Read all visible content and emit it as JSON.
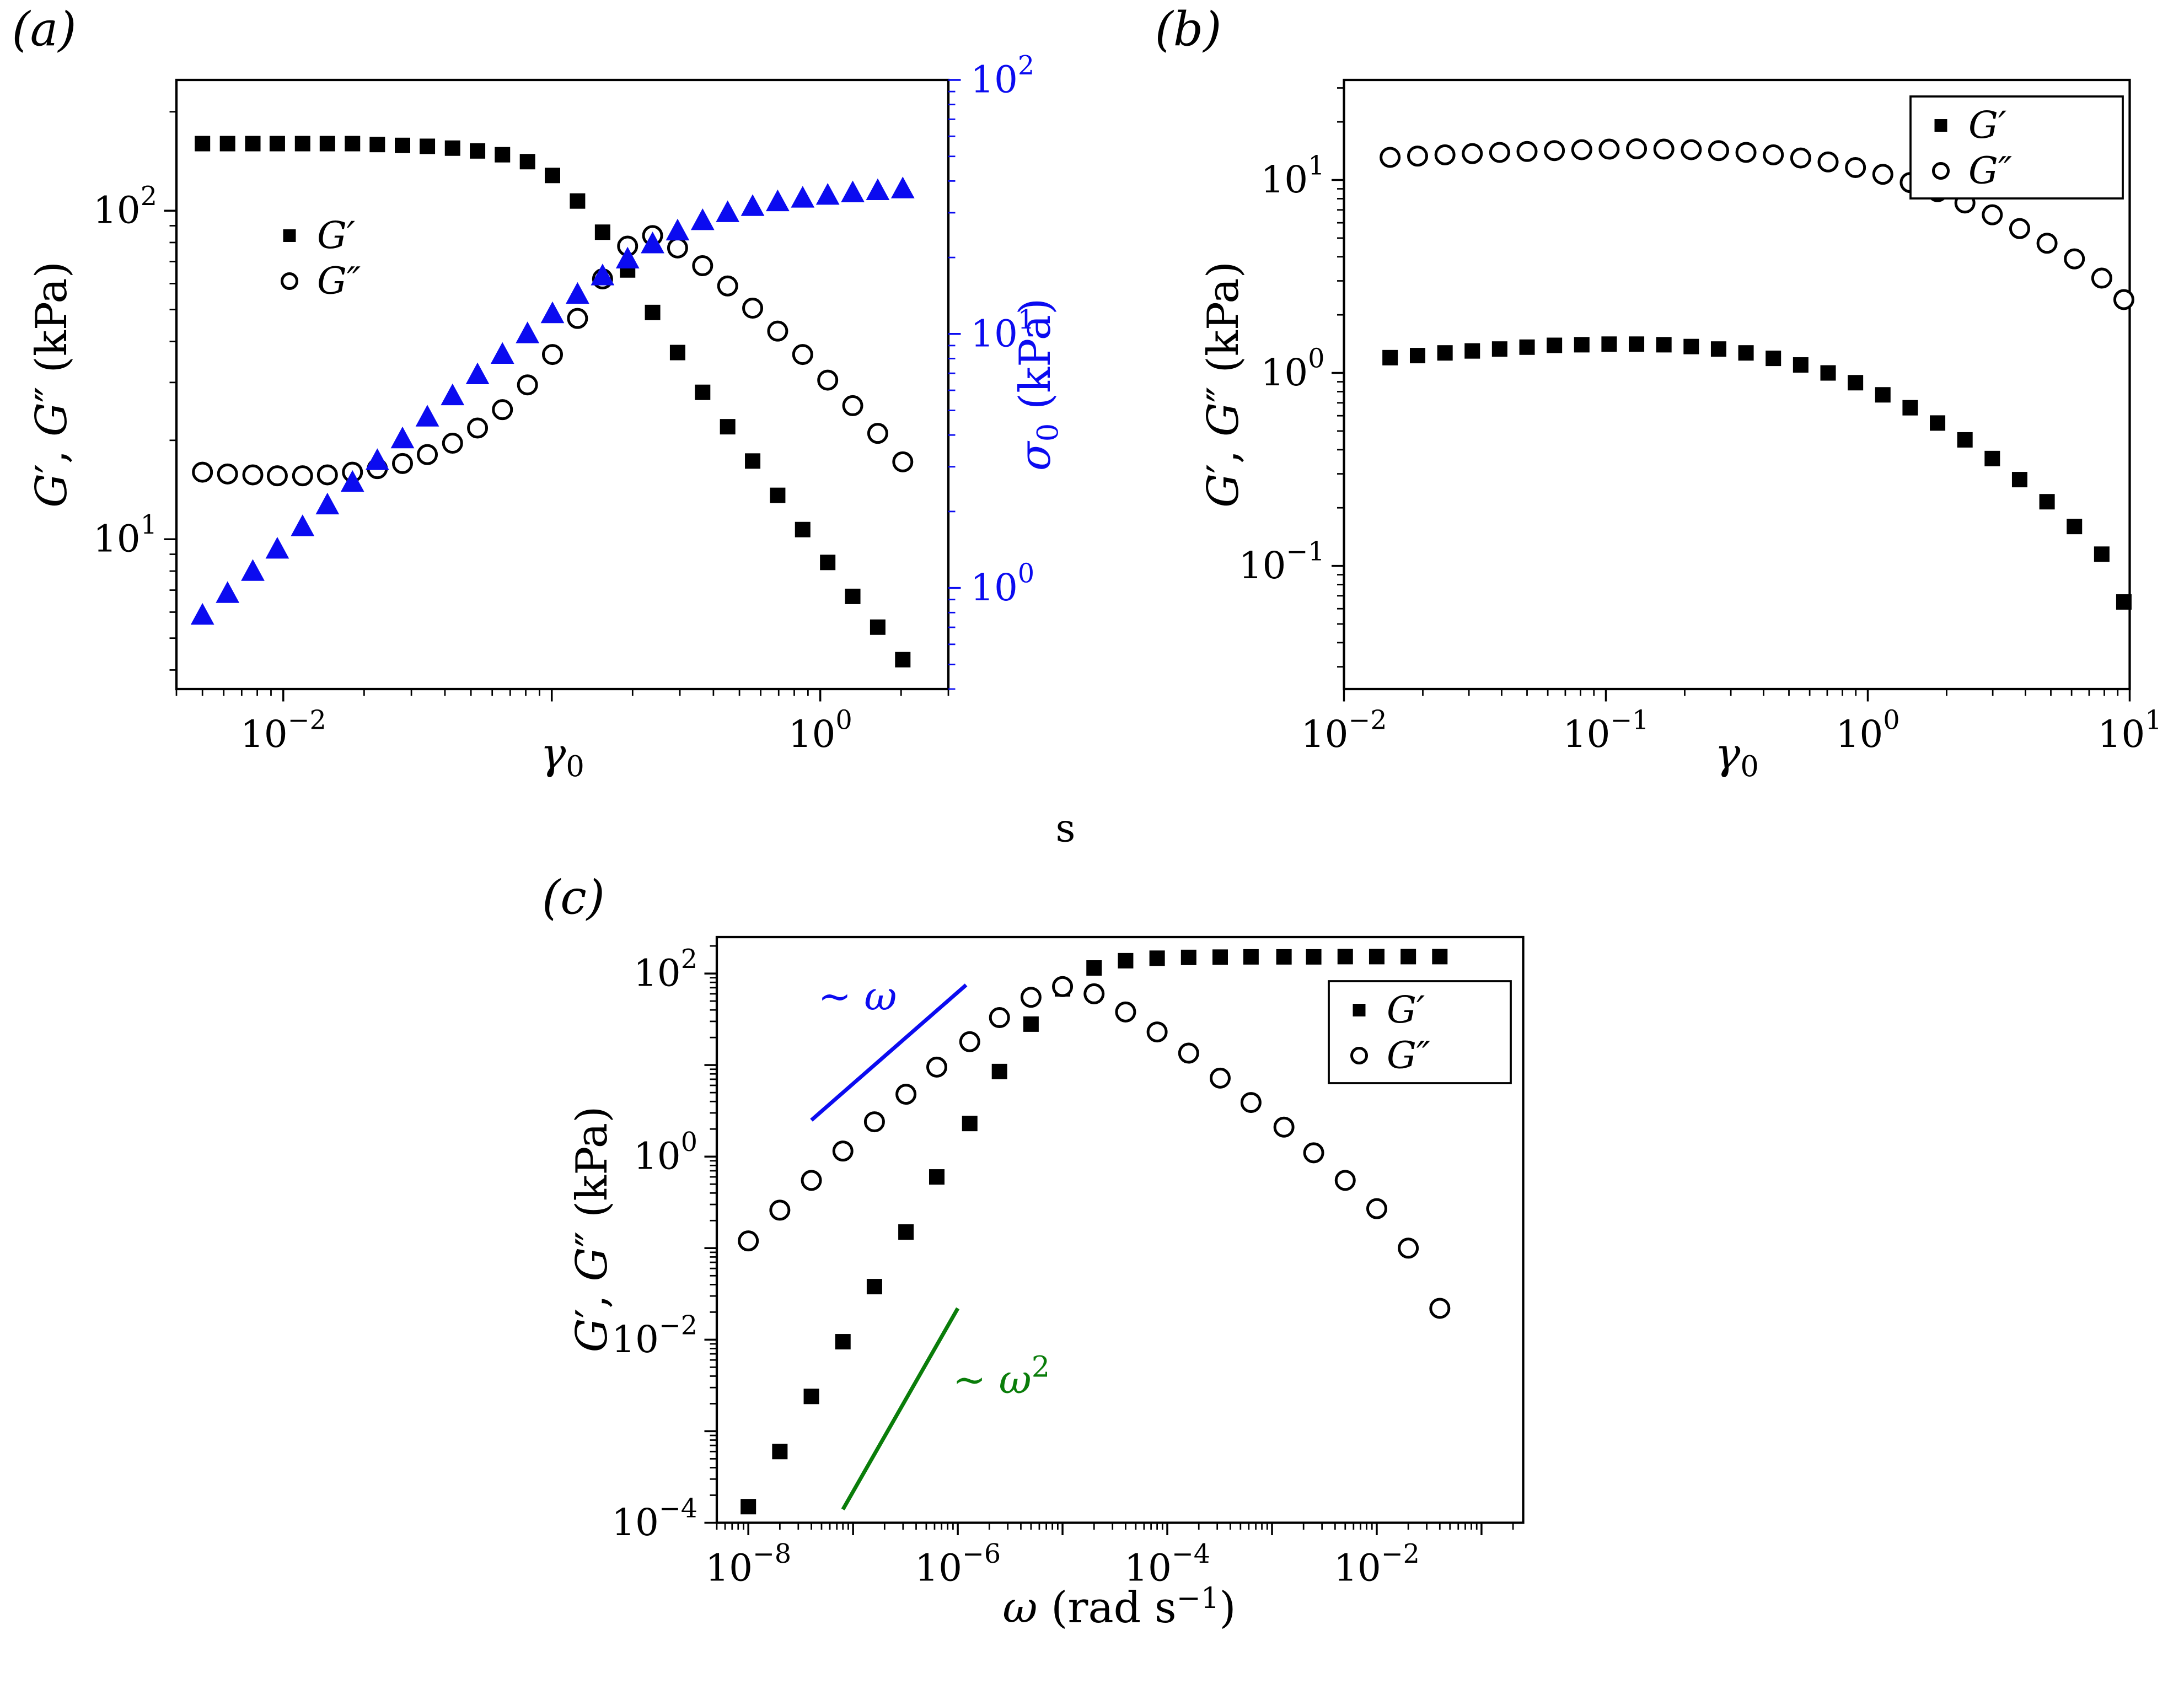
{
  "labels": {
    "panel_a": "(a)",
    "panel_b": "(b)",
    "panel_c": "(c)",
    "stray_s": "s",
    "axis_gg_kpa": [
      {
        "t": "G",
        "i": 1
      },
      {
        "t": "′"
      },
      {
        "t": ", "
      },
      {
        "t": "G",
        "i": 1
      },
      {
        "t": "″"
      },
      {
        "t": " (kPa)"
      }
    ],
    "axis_gamma0": [
      {
        "t": "γ",
        "i": 1
      },
      {
        "t": "0",
        "sub": 1
      }
    ],
    "axis_sigma0_kpa": [
      {
        "t": "σ",
        "i": 1
      },
      {
        "t": "0",
        "sub": 1
      },
      {
        "t": " (kPa)"
      }
    ],
    "axis_omega_rads": [
      {
        "t": "ω",
        "i": 1
      },
      {
        "t": " (rad s"
      },
      {
        "t": "−1",
        "sup": 1
      },
      {
        "t": ")"
      }
    ]
  },
  "colors": {
    "black": "#000000",
    "blue": "#0b0bf0",
    "green": "#0a7d0a",
    "frame": "#000000"
  },
  "chart_data": [
    {
      "id": "a",
      "type": "scatter",
      "xscale": "log",
      "yscale": "log",
      "xlabel": "gamma_0",
      "ylabel": "G', G'' (kPa)",
      "y2label": "sigma_0 (kPa)",
      "xlim": [
        0.004,
        3
      ],
      "ylim": [
        3.5,
        250
      ],
      "y2lim": [
        0.4,
        100
      ],
      "xtick_exponents": [
        -2,
        0
      ],
      "ytick_exponents": [
        1,
        2
      ],
      "y2tick_exponents": [
        0,
        1,
        2
      ],
      "grid": false,
      "legend": {
        "border": false,
        "entries": [
          {
            "marker": "square",
            "label": "G′"
          },
          {
            "marker": "circle-open",
            "label": "G″"
          }
        ]
      },
      "series": [
        {
          "name": "G'",
          "marker": "square",
          "color": "#000000",
          "axis": "y",
          "x": [
            0.005,
            0.0062,
            0.0077,
            0.0095,
            0.0118,
            0.0146,
            0.0181,
            0.0224,
            0.0278,
            0.0344,
            0.0427,
            0.0529,
            0.0655,
            0.0812,
            0.1006,
            0.1247,
            0.1546,
            0.1916,
            0.2374,
            0.2942,
            0.3646,
            0.4519,
            0.56,
            0.694,
            0.86,
            1.066,
            1.321,
            1.637,
            2.029
          ],
          "y": [
            160,
            160,
            160,
            160,
            160,
            160,
            160,
            159,
            158,
            157,
            155,
            152,
            148,
            141,
            128,
            107,
            86,
            66,
            49,
            37,
            28,
            22,
            17.3,
            13.6,
            10.7,
            8.5,
            6.7,
            5.4,
            4.3
          ]
        },
        {
          "name": "G''",
          "marker": "circle-open",
          "color": "#000000",
          "axis": "y",
          "x": [
            0.005,
            0.0062,
            0.0077,
            0.0095,
            0.0118,
            0.0146,
            0.0181,
            0.0224,
            0.0278,
            0.0344,
            0.0427,
            0.0529,
            0.0655,
            0.0812,
            0.1006,
            0.1247,
            0.1546,
            0.1916,
            0.2374,
            0.2942,
            0.3646,
            0.4519,
            0.56,
            0.694,
            0.86,
            1.066,
            1.321,
            1.637,
            2.029
          ],
          "y": [
            16,
            15.8,
            15.7,
            15.6,
            15.6,
            15.7,
            16,
            16.4,
            17,
            18.1,
            19.6,
            21.8,
            24.8,
            29.5,
            36.5,
            47,
            62,
            78,
            84,
            77,
            68,
            59,
            50.5,
            43,
            36.5,
            30.5,
            25.5,
            21,
            17.2
          ]
        },
        {
          "name": "sigma_0",
          "marker": "triangle",
          "color": "#0b0bf0",
          "axis": "y2",
          "x": [
            0.005,
            0.0062,
            0.0077,
            0.0095,
            0.0118,
            0.0146,
            0.0181,
            0.0224,
            0.0278,
            0.0344,
            0.0427,
            0.0529,
            0.0655,
            0.0812,
            0.1006,
            0.1247,
            0.1546,
            0.1916,
            0.2374,
            0.2942,
            0.3646,
            0.4519,
            0.56,
            0.694,
            0.86,
            1.066,
            1.321,
            1.637,
            2.029
          ],
          "y": [
            0.78,
            0.95,
            1.16,
            1.42,
            1.74,
            2.12,
            2.6,
            3.17,
            3.86,
            4.7,
            5.7,
            6.9,
            8.3,
            10,
            12,
            14.3,
            16.9,
            19.7,
            22.6,
            25.4,
            27.9,
            30,
            31.7,
            33.1,
            34.2,
            35.1,
            35.9,
            36.6,
            37.2
          ]
        }
      ]
    },
    {
      "id": "b",
      "type": "scatter",
      "xscale": "log",
      "yscale": "log",
      "xlabel": "gamma_0",
      "ylabel": "G', G'' (kPa)",
      "xlim": [
        0.01,
        10
      ],
      "ylim": [
        0.023,
        33
      ],
      "xtick_exponents": [
        -2,
        -1,
        0,
        1
      ],
      "ytick_exponents": [
        -1,
        0,
        1
      ],
      "grid": false,
      "legend": {
        "border": true,
        "entries": [
          {
            "marker": "square",
            "label": "G′"
          },
          {
            "marker": "circle-open",
            "label": "G″"
          }
        ]
      },
      "series": [
        {
          "name": "G'",
          "marker": "square",
          "color": "#000000",
          "axis": "y",
          "x": [
            0.015,
            0.0191,
            0.0243,
            0.0309,
            0.0393,
            0.05,
            0.0636,
            0.0809,
            0.1029,
            0.1309,
            0.1665,
            0.2118,
            0.2694,
            0.3427,
            0.4359,
            0.5545,
            0.7054,
            0.8973,
            1.1414,
            1.4519,
            1.8468,
            2.3492,
            2.9882,
            3.801,
            4.835,
            6.1504,
            7.8235,
            9.5
          ],
          "y": [
            1.2,
            1.23,
            1.27,
            1.3,
            1.33,
            1.36,
            1.39,
            1.4,
            1.41,
            1.41,
            1.4,
            1.37,
            1.33,
            1.27,
            1.19,
            1.1,
            1.0,
            0.89,
            0.77,
            0.66,
            0.55,
            0.45,
            0.36,
            0.28,
            0.215,
            0.16,
            0.115,
            0.065
          ]
        },
        {
          "name": "G''",
          "marker": "circle-open",
          "color": "#000000",
          "axis": "y",
          "x": [
            0.015,
            0.0191,
            0.0243,
            0.0309,
            0.0393,
            0.05,
            0.0636,
            0.0809,
            0.1029,
            0.1309,
            0.1665,
            0.2118,
            0.2694,
            0.3427,
            0.4359,
            0.5545,
            0.7054,
            0.8973,
            1.1414,
            1.4519,
            1.8468,
            2.3492,
            2.9882,
            3.801,
            4.835,
            6.1504,
            7.8235,
            9.5
          ],
          "y": [
            13.1,
            13.3,
            13.5,
            13.7,
            13.9,
            14.05,
            14.2,
            14.35,
            14.45,
            14.5,
            14.45,
            14.35,
            14.2,
            13.9,
            13.5,
            13,
            12.4,
            11.6,
            10.7,
            9.7,
            8.7,
            7.6,
            6.6,
            5.6,
            4.7,
            3.9,
            3.1,
            2.4
          ]
        }
      ]
    },
    {
      "id": "c",
      "type": "scatter",
      "xscale": "log",
      "yscale": "log",
      "xlabel": "omega (rad/s)",
      "ylabel": "G', G'' (kPa)",
      "xlim": [
        5e-09,
        0.25
      ],
      "ylim": [
        0.0001,
        250
      ],
      "xtick_exponents": [
        -8,
        -6,
        -4,
        -2
      ],
      "ytick_exponents": [
        -4,
        -2,
        0,
        2
      ],
      "grid": false,
      "legend": {
        "border": true,
        "entries": [
          {
            "marker": "square",
            "label": "G′"
          },
          {
            "marker": "circle-open",
            "label": "G″"
          }
        ]
      },
      "series": [
        {
          "name": "G'",
          "marker": "square",
          "color": "#000000",
          "axis": "y",
          "x": [
            1e-08,
            2e-08,
            4e-08,
            8e-08,
            1.6e-07,
            3.2e-07,
            6.3e-07,
            1.3e-06,
            2.5e-06,
            5e-06,
            1e-05,
            2e-05,
            4e-05,
            8e-05,
            0.00016,
            0.00032,
            0.00063,
            0.0013,
            0.0025,
            0.005,
            0.01,
            0.02,
            0.04
          ],
          "y": [
            0.00015,
            0.0006,
            0.0024,
            0.0095,
            0.038,
            0.15,
            0.6,
            2.3,
            8.5,
            28,
            68,
            115,
            138,
            147,
            150,
            151,
            152,
            152,
            152,
            153,
            153,
            153,
            153
          ]
        },
        {
          "name": "G''",
          "marker": "circle-open",
          "color": "#000000",
          "axis": "y",
          "x": [
            1e-08,
            2e-08,
            4e-08,
            8e-08,
            1.6e-07,
            3.2e-07,
            6.3e-07,
            1.3e-06,
            2.5e-06,
            5e-06,
            1e-05,
            2e-05,
            4e-05,
            8e-05,
            0.00016,
            0.00032,
            0.00063,
            0.0013,
            0.0025,
            0.005,
            0.01,
            0.02,
            0.04
          ],
          "y": [
            0.12,
            0.26,
            0.55,
            1.15,
            2.4,
            4.8,
            9.5,
            18,
            33,
            55,
            72,
            60,
            38,
            23,
            13.5,
            7.2,
            3.9,
            2.1,
            1.1,
            0.55,
            0.27,
            0.1,
            0.022
          ]
        }
      ],
      "annotations": {
        "lines": [
          {
            "x1": 4e-08,
            "y1": 2.5,
            "x2": 1.2e-06,
            "y2": 75,
            "color": "#0b0bf0"
          },
          {
            "x1": 8e-08,
            "y1": 0.00014,
            "x2": 1e-06,
            "y2": 0.022,
            "color": "#0a7d0a"
          }
        ],
        "labels": [
          {
            "x": 1.1e-07,
            "y": 40,
            "color": "#0b0bf0",
            "segs": [
              {
                "t": "~ "
              },
              {
                "t": "ω",
                "i": 1
              }
            ]
          },
          {
            "x": 2.6e-06,
            "y": 0.0026,
            "color": "#0a7d0a",
            "segs": [
              {
                "t": "~ "
              },
              {
                "t": "ω",
                "i": 1
              },
              {
                "t": "2",
                "sup": 1
              }
            ]
          }
        ]
      }
    }
  ]
}
